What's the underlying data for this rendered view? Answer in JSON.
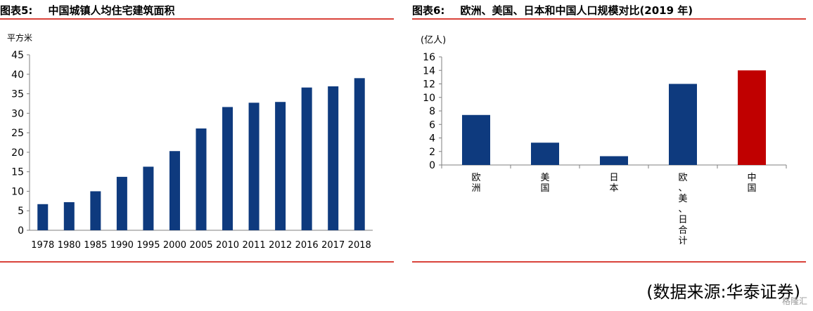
{
  "fig5": {
    "label": "图表5:",
    "title": "中国城镇人均住宅建筑面积"
  },
  "fig6": {
    "label": "图表6:",
    "title": "欧洲、美国、日本和中国人口规模对比(2019 年)"
  },
  "source": "(数据来源:华泰证券)",
  "watermark": "格隆汇",
  "chart_data": [
    {
      "type": "bar",
      "title": "中国城镇人均住宅建筑面积",
      "ylabel": "平方米",
      "xlabel": "",
      "categories": [
        "1978",
        "1980",
        "1985",
        "1990",
        "1995",
        "2000",
        "2005",
        "2010",
        "2011",
        "2012",
        "2016",
        "2017",
        "2018"
      ],
      "values": [
        6.7,
        7.2,
        10.0,
        13.7,
        16.3,
        20.3,
        26.1,
        31.6,
        32.7,
        32.9,
        36.6,
        36.9,
        39.0
      ],
      "ylim": [
        0,
        45
      ],
      "yticks": [
        0,
        5,
        10,
        15,
        20,
        25,
        30,
        35,
        40,
        45
      ],
      "grid": false,
      "colors": [
        "#0e3a7e"
      ]
    },
    {
      "type": "bar",
      "title": "欧洲、美国、日本和中国人口规模对比(2019 年)",
      "ylabel": "(亿人)",
      "xlabel": "",
      "categories": [
        "欧洲",
        "美国",
        "日本",
        "欧、美、日合计",
        "中国"
      ],
      "values": [
        7.4,
        3.3,
        1.3,
        12.0,
        14.0
      ],
      "ylim": [
        0,
        16
      ],
      "yticks": [
        0,
        2,
        4,
        6,
        8,
        10,
        12,
        14,
        16
      ],
      "grid": false,
      "colors": [
        "#0e3a7e",
        "#0e3a7e",
        "#0e3a7e",
        "#0e3a7e",
        "#c00000"
      ]
    }
  ]
}
